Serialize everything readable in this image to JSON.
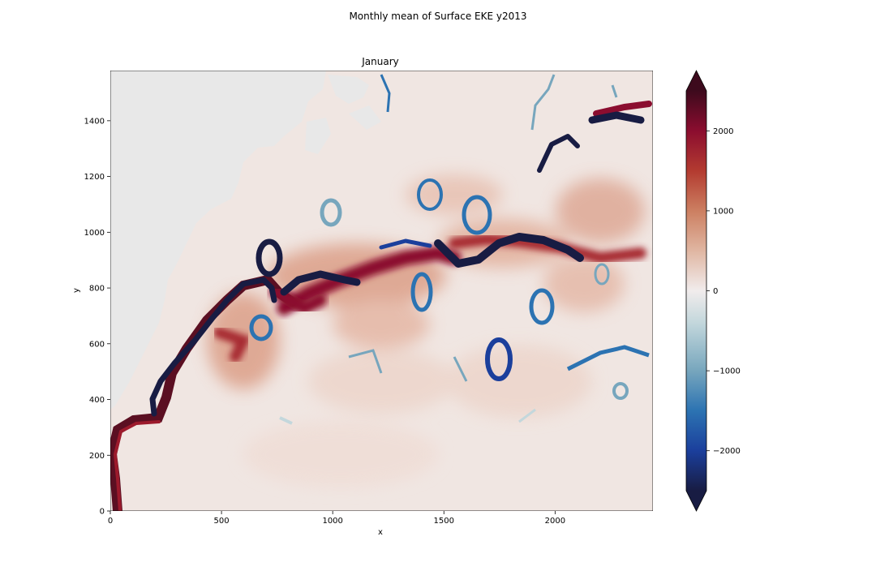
{
  "figure": {
    "suptitle": "Monthly mean of Surface EKE y2013"
  },
  "chart_data": {
    "type": "heatmap",
    "title": "January",
    "xlabel": "x",
    "ylabel": "y",
    "xlim": [
      0,
      2440
    ],
    "ylim": [
      0,
      1580
    ],
    "x_ticks": [
      0,
      500,
      1000,
      1500,
      2000
    ],
    "y_ticks": [
      0,
      200,
      400,
      600,
      800,
      1000,
      1200,
      1400
    ],
    "colorbar": {
      "range": [
        -2500,
        2500
      ],
      "ticks": [
        -2000,
        -1000,
        0,
        1000,
        2000
      ],
      "tick_labels": [
        "−2000",
        "−1000",
        "0",
        "1000",
        "2000"
      ],
      "extend": "both",
      "colormap": "balance",
      "colors": [
        "#181c43",
        "#1b3f9c",
        "#2c73b2",
        "#77a6bd",
        "#c3d7dc",
        "#f1ecec",
        "#e0b6a2",
        "#cc7f61",
        "#b33b30",
        "#8b0d2f",
        "#3d0a1d"
      ]
    },
    "land_color": "#e8e8e8",
    "ocean_background": "#f0e6e2"
  }
}
